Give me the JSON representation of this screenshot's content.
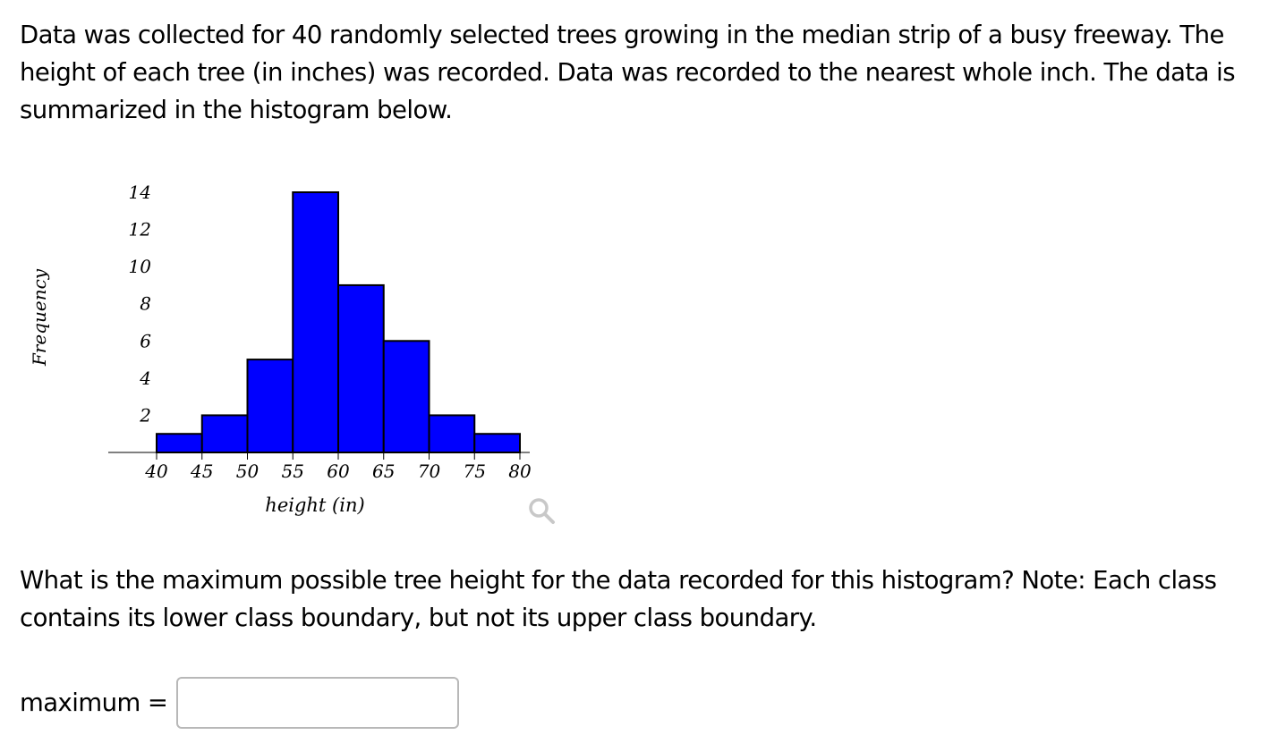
{
  "prompt": {
    "text": "Data was collected for 40 randomly selected trees growing in the median strip of a busy freeway. The height of each tree (in inches) was recorded. Data was recorded to the nearest whole inch. The data is summarized in the histogram below."
  },
  "question": {
    "text": "What is the maximum possible tree height for the data recorded for this histogram? Note: Each class contains its lower class boundary, but not its upper class boundary."
  },
  "answer": {
    "label": "maximum =",
    "value": "",
    "placeholder": ""
  },
  "zoom_icon": "magnifier-icon",
  "colors": {
    "bar_fill": "#0000ff",
    "bar_stroke": "#000000",
    "zoom_icon": "#c8c8c8"
  },
  "chart_data": {
    "type": "bar",
    "bin_edges": [
      40,
      45,
      50,
      55,
      60,
      65,
      70,
      75,
      80
    ],
    "values": [
      1,
      2,
      5,
      14,
      9,
      6,
      2,
      1
    ],
    "xlabel": "height (in)",
    "ylabel": "Frequency",
    "xticks": [
      "40",
      "45",
      "50",
      "55",
      "60",
      "65",
      "70",
      "75",
      "80"
    ],
    "yticks": [
      "2",
      "4",
      "6",
      "8",
      "10",
      "12",
      "14"
    ],
    "xlim": [
      40,
      80
    ],
    "ylim": [
      0,
      14
    ],
    "grid": false,
    "legend": "none"
  }
}
